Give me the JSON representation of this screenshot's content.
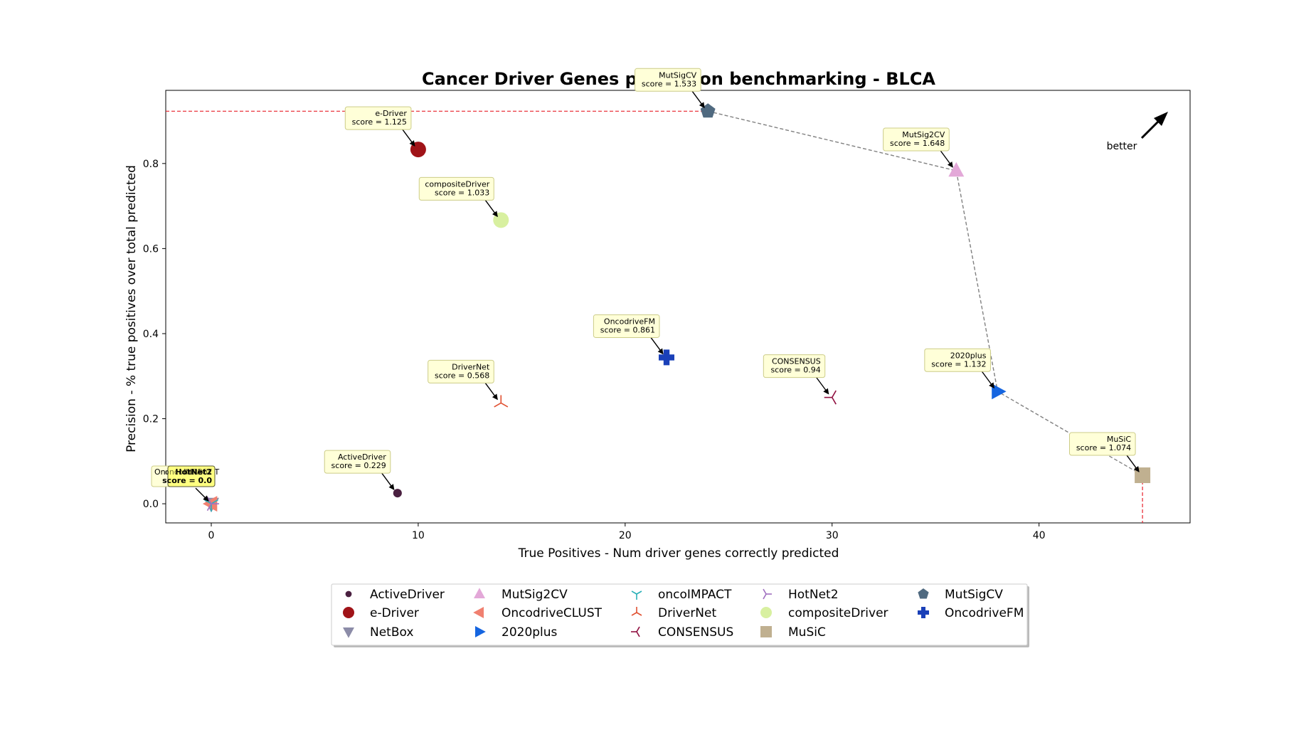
{
  "chart_data": {
    "type": "scatter",
    "title": "Cancer Driver Genes prediction benchmarking - BLCA",
    "xlabel": "True Positives - Num driver genes correctly predicted",
    "ylabel": "Precision - % true positives over total predicted",
    "xlim": [
      -2.2,
      47.3
    ],
    "ylim": [
      -0.045,
      0.972
    ],
    "xticks": [
      0,
      10,
      20,
      30,
      40
    ],
    "yticks": [
      0.0,
      0.2,
      0.4,
      0.6,
      0.8
    ],
    "grid": false,
    "legend_placement": "bottom-center",
    "better_label": "better",
    "series": [
      {
        "name": "ActiveDriver",
        "x": 9,
        "y": 0.025,
        "marker": "circle-small",
        "color": "#4a2040",
        "annotation": [
          "ActiveDriver",
          "score = 0.229"
        ]
      },
      {
        "name": "e-Driver",
        "x": 10,
        "y": 0.833,
        "marker": "circle",
        "color": "#a01318",
        "annotation": [
          "e-Driver",
          "score = 1.125"
        ]
      },
      {
        "name": "NetBox",
        "x": 0,
        "y": 0.0,
        "marker": "triangle-down",
        "color": "#8c8ca8",
        "annotation": []
      },
      {
        "name": "MutSig2CV",
        "x": 36,
        "y": 0.783,
        "marker": "triangle-up",
        "color": "#e3a8d8",
        "annotation": [
          "MutSig2CV",
          "score = 1.648"
        ]
      },
      {
        "name": "OncodriveCLUST",
        "x": 0,
        "y": 0.0,
        "marker": "triangle-left",
        "color": "#f08070",
        "annotation": []
      },
      {
        "name": "2020plus",
        "x": 38,
        "y": 0.264,
        "marker": "triangle-right",
        "color": "#1565e0",
        "annotation": [
          "2020plus",
          "score = 1.132"
        ]
      },
      {
        "name": "oncoIMPACT",
        "x": 0,
        "y": 0.0,
        "marker": "tri-down",
        "color": "#2ab0b8",
        "annotation": []
      },
      {
        "name": "DriverNet",
        "x": 14,
        "y": 0.237,
        "marker": "tri-up",
        "color": "#e05030",
        "annotation": [
          "DriverNet",
          "score = 0.568"
        ]
      },
      {
        "name": "CONSENSUS",
        "x": 30,
        "y": 0.25,
        "marker": "tri-left",
        "color": "#901040",
        "annotation": [
          "CONSENSUS",
          "score = 0.94"
        ]
      },
      {
        "name": "HotNet2",
        "x": 0,
        "y": 0.0,
        "marker": "tri-right",
        "color": "#a070c0",
        "annotation": []
      },
      {
        "name": "compositeDriver",
        "x": 14,
        "y": 0.667,
        "marker": "circle",
        "color": "#d8f0a0",
        "annotation": [
          "compositeDriver",
          "score = 1.033"
        ]
      },
      {
        "name": "MuSiC",
        "x": 45,
        "y": 0.067,
        "marker": "square",
        "color": "#c0b090",
        "annotation": [
          "MuSiC",
          "score = 1.074"
        ]
      },
      {
        "name": "MutSigCV",
        "x": 24,
        "y": 0.923,
        "marker": "pentagon",
        "color": "#506a80",
        "annotation": [
          "MutSigCV",
          "score = 1.533"
        ]
      },
      {
        "name": "OncodriveFM",
        "x": 22,
        "y": 0.344,
        "marker": "plus",
        "color": "#1a40b8",
        "annotation": [
          "OncodriveFM",
          "score = 0.861"
        ]
      }
    ],
    "pareto_front": [
      [
        24,
        0.923
      ],
      [
        36,
        0.783
      ],
      [
        38,
        0.264
      ],
      [
        45,
        0.067
      ]
    ],
    "cluster_annotation": {
      "lines": [
        "OncodriveCLUST",
        "HotNet2",
        "oncoIMPACT",
        "NetBox"
      ],
      "score": "score = 0.0",
      "label_front": "HotNet2"
    }
  }
}
